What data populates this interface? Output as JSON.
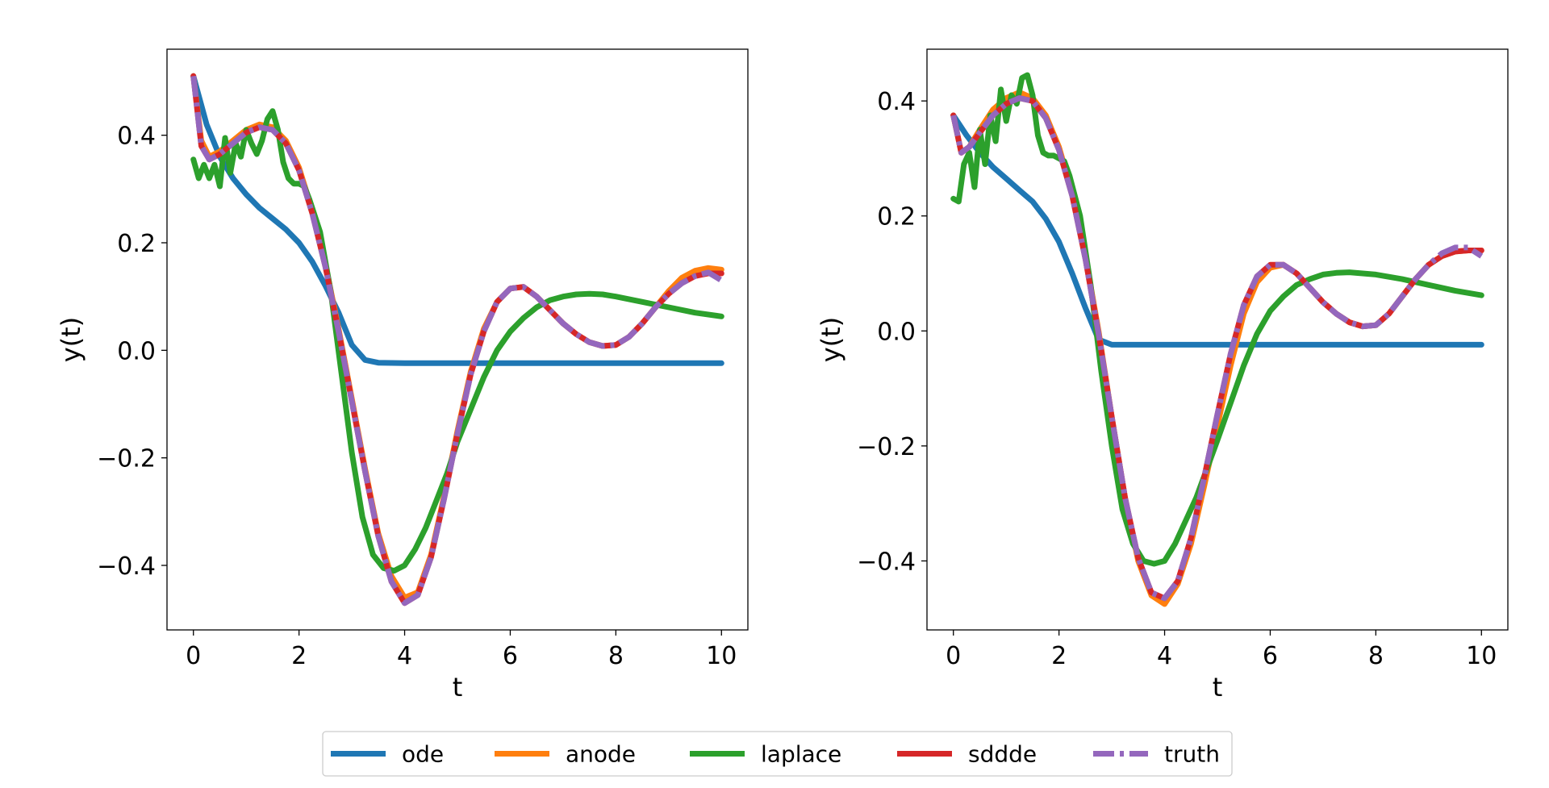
{
  "legend": {
    "placement": "bottom-center",
    "entries": [
      {
        "name": "ode",
        "color": "#1f77b4",
        "dashed": false
      },
      {
        "name": "anode",
        "color": "#ff7f0e",
        "dashed": false
      },
      {
        "name": "laplace",
        "color": "#2ca02c",
        "dashed": false
      },
      {
        "name": "sddde",
        "color": "#d62728",
        "dashed": false
      },
      {
        "name": "truth",
        "color": "#9467bd",
        "dashed": true
      }
    ]
  },
  "chart_data": [
    {
      "type": "line",
      "xlabel": "t",
      "ylabel": "y(t)",
      "xlim": [
        -0.5,
        10.5
      ],
      "ylim": [
        -0.52,
        0.56
      ],
      "xticks": [
        0,
        2,
        4,
        6,
        8,
        10
      ],
      "yticks": [
        -0.4,
        -0.2,
        0.0,
        0.2,
        0.4
      ],
      "ytick_labels": [
        "−0.4",
        "−0.2",
        "0.0",
        "0.2",
        "0.4"
      ],
      "grid": false,
      "series": [
        {
          "name": "ode",
          "x": [
            0,
            0.25,
            0.5,
            0.75,
            1,
            1.25,
            1.5,
            1.75,
            2,
            2.25,
            2.5,
            2.75,
            3,
            3.25,
            3.5,
            4,
            5,
            6,
            7,
            8,
            9,
            10
          ],
          "y": [
            0.51,
            0.42,
            0.36,
            0.32,
            0.29,
            0.265,
            0.245,
            0.225,
            0.2,
            0.165,
            0.12,
            0.07,
            0.01,
            -0.018,
            -0.023,
            -0.024,
            -0.024,
            -0.024,
            -0.024,
            -0.024,
            -0.024,
            -0.024
          ]
        },
        {
          "name": "anode",
          "x": [
            0,
            0.15,
            0.3,
            0.5,
            0.75,
            1,
            1.25,
            1.5,
            1.75,
            2,
            2.25,
            2.5,
            2.75,
            3,
            3.25,
            3.5,
            3.75,
            4,
            4.25,
            4.5,
            4.75,
            5,
            5.25,
            5.5,
            5.75,
            6,
            6.25,
            6.5,
            6.75,
            7,
            7.25,
            7.5,
            7.75,
            8,
            8.25,
            8.5,
            8.75,
            9,
            9.25,
            9.5,
            9.75,
            10
          ],
          "y": [
            0.51,
            0.39,
            0.36,
            0.37,
            0.39,
            0.41,
            0.42,
            0.415,
            0.39,
            0.34,
            0.26,
            0.16,
            0.04,
            -0.09,
            -0.22,
            -0.34,
            -0.42,
            -0.46,
            -0.45,
            -0.38,
            -0.27,
            -0.15,
            -0.04,
            0.04,
            0.09,
            0.115,
            0.118,
            0.1,
            0.075,
            0.05,
            0.03,
            0.015,
            0.008,
            0.01,
            0.025,
            0.05,
            0.08,
            0.11,
            0.135,
            0.148,
            0.153,
            0.15
          ]
        },
        {
          "name": "laplace",
          "x": [
            0,
            0.1,
            0.2,
            0.3,
            0.4,
            0.5,
            0.6,
            0.7,
            0.8,
            0.9,
            1,
            1.1,
            1.2,
            1.3,
            1.4,
            1.5,
            1.6,
            1.7,
            1.8,
            1.9,
            2,
            2.1,
            2.2,
            2.4,
            2.6,
            2.8,
            3,
            3.2,
            3.4,
            3.6,
            3.8,
            4,
            4.2,
            4.4,
            4.6,
            4.8,
            5,
            5.25,
            5.5,
            5.75,
            6,
            6.25,
            6.5,
            6.75,
            7,
            7.25,
            7.5,
            7.75,
            8,
            8.5,
            9,
            9.5,
            10
          ],
          "y": [
            0.355,
            0.32,
            0.345,
            0.32,
            0.345,
            0.305,
            0.395,
            0.33,
            0.385,
            0.36,
            0.41,
            0.385,
            0.365,
            0.39,
            0.43,
            0.445,
            0.41,
            0.35,
            0.32,
            0.31,
            0.31,
            0.305,
            0.28,
            0.22,
            0.11,
            -0.04,
            -0.19,
            -0.31,
            -0.38,
            -0.405,
            -0.41,
            -0.4,
            -0.37,
            -0.33,
            -0.28,
            -0.23,
            -0.17,
            -0.11,
            -0.05,
            0.0,
            0.035,
            0.06,
            0.08,
            0.093,
            0.1,
            0.104,
            0.105,
            0.104,
            0.1,
            0.09,
            0.08,
            0.07,
            0.063
          ]
        },
        {
          "name": "sddde",
          "x": [
            0,
            0.15,
            0.3,
            0.5,
            0.75,
            1,
            1.25,
            1.5,
            1.75,
            2,
            2.25,
            2.5,
            2.75,
            3,
            3.25,
            3.5,
            3.75,
            4,
            4.25,
            4.5,
            4.75,
            5,
            5.25,
            5.5,
            5.75,
            6,
            6.25,
            6.5,
            6.75,
            7,
            7.25,
            7.5,
            7.75,
            8,
            8.25,
            8.5,
            8.75,
            9,
            9.25,
            9.5,
            9.75,
            10
          ],
          "y": [
            0.51,
            0.38,
            0.355,
            0.365,
            0.385,
            0.405,
            0.415,
            0.41,
            0.385,
            0.335,
            0.255,
            0.155,
            0.035,
            -0.095,
            -0.225,
            -0.345,
            -0.43,
            -0.47,
            -0.455,
            -0.385,
            -0.275,
            -0.155,
            -0.045,
            0.035,
            0.09,
            0.115,
            0.118,
            0.1,
            0.075,
            0.05,
            0.03,
            0.015,
            0.008,
            0.01,
            0.025,
            0.05,
            0.08,
            0.105,
            0.125,
            0.138,
            0.143,
            0.143
          ]
        },
        {
          "name": "truth",
          "x": [
            0,
            0.15,
            0.3,
            0.5,
            0.75,
            1,
            1.25,
            1.5,
            1.75,
            2,
            2.25,
            2.5,
            2.75,
            3,
            3.25,
            3.5,
            3.75,
            4,
            4.25,
            4.5,
            4.75,
            5,
            5.25,
            5.5,
            5.75,
            6,
            6.25,
            6.5,
            6.75,
            7,
            7.25,
            7.5,
            7.75,
            8,
            8.25,
            8.5,
            8.75,
            9,
            9.25,
            9.5,
            9.75,
            10
          ],
          "y": [
            0.51,
            0.38,
            0.355,
            0.365,
            0.385,
            0.405,
            0.415,
            0.41,
            0.385,
            0.335,
            0.255,
            0.155,
            0.035,
            -0.095,
            -0.225,
            -0.345,
            -0.43,
            -0.47,
            -0.455,
            -0.385,
            -0.275,
            -0.155,
            -0.045,
            0.035,
            0.09,
            0.115,
            0.118,
            0.1,
            0.075,
            0.05,
            0.03,
            0.015,
            0.008,
            0.01,
            0.025,
            0.05,
            0.08,
            0.105,
            0.125,
            0.138,
            0.145,
            0.13
          ]
        }
      ]
    },
    {
      "type": "line",
      "xlabel": "t",
      "ylabel": "y(t)",
      "xlim": [
        -0.5,
        10.5
      ],
      "ylim": [
        -0.52,
        0.49
      ],
      "xticks": [
        0,
        2,
        4,
        6,
        8,
        10
      ],
      "yticks": [
        -0.4,
        -0.2,
        0.0,
        0.2,
        0.4
      ],
      "ytick_labels": [
        "−0.4",
        "−0.2",
        "0.0",
        "0.2",
        "0.4"
      ],
      "grid": false,
      "series": [
        {
          "name": "ode",
          "x": [
            0,
            0.25,
            0.5,
            0.75,
            1,
            1.25,
            1.5,
            1.75,
            2,
            2.25,
            2.5,
            2.75,
            3,
            3.25,
            3.5,
            4,
            5,
            6,
            7,
            8,
            9,
            10
          ],
          "y": [
            0.375,
            0.34,
            0.31,
            0.285,
            0.265,
            0.245,
            0.225,
            0.195,
            0.155,
            0.1,
            0.04,
            -0.015,
            -0.024,
            -0.024,
            -0.024,
            -0.024,
            -0.024,
            -0.024,
            -0.024,
            -0.024,
            -0.024,
            -0.024
          ]
        },
        {
          "name": "anode",
          "x": [
            0,
            0.15,
            0.3,
            0.5,
            0.75,
            1,
            1.25,
            1.5,
            1.75,
            2,
            2.25,
            2.5,
            2.75,
            3,
            3.25,
            3.5,
            3.75,
            4,
            4.25,
            4.5,
            4.75,
            5,
            5.25,
            5.5,
            5.75,
            6,
            6.25,
            6.5,
            6.75,
            7,
            7.25,
            7.5,
            7.75,
            8,
            8.25,
            8.5,
            8.75,
            9,
            9.25,
            9.5,
            9.75,
            10
          ],
          "y": [
            0.375,
            0.31,
            0.32,
            0.35,
            0.385,
            0.405,
            0.415,
            0.405,
            0.375,
            0.32,
            0.24,
            0.13,
            0.0,
            -0.15,
            -0.29,
            -0.4,
            -0.46,
            -0.475,
            -0.44,
            -0.37,
            -0.27,
            -0.165,
            -0.06,
            0.03,
            0.085,
            0.11,
            0.115,
            0.1,
            0.075,
            0.05,
            0.03,
            0.015,
            0.008,
            0.01,
            0.03,
            0.06,
            0.09,
            0.115,
            0.13,
            0.138,
            0.14,
            0.14
          ]
        },
        {
          "name": "laplace",
          "x": [
            0,
            0.1,
            0.2,
            0.3,
            0.4,
            0.5,
            0.6,
            0.7,
            0.8,
            0.9,
            1,
            1.1,
            1.2,
            1.3,
            1.4,
            1.5,
            1.6,
            1.7,
            1.8,
            1.9,
            2,
            2.1,
            2.2,
            2.4,
            2.6,
            2.8,
            3,
            3.2,
            3.4,
            3.6,
            3.8,
            4,
            4.2,
            4.4,
            4.6,
            4.8,
            5,
            5.25,
            5.5,
            5.75,
            6,
            6.25,
            6.5,
            6.75,
            7,
            7.25,
            7.5,
            7.75,
            8,
            8.5,
            9,
            9.5,
            10
          ],
          "y": [
            0.23,
            0.225,
            0.29,
            0.31,
            0.25,
            0.35,
            0.29,
            0.375,
            0.33,
            0.42,
            0.365,
            0.41,
            0.395,
            0.44,
            0.445,
            0.41,
            0.34,
            0.31,
            0.305,
            0.305,
            0.3,
            0.295,
            0.27,
            0.2,
            0.08,
            -0.07,
            -0.2,
            -0.31,
            -0.37,
            -0.4,
            -0.405,
            -0.4,
            -0.37,
            -0.33,
            -0.29,
            -0.24,
            -0.19,
            -0.125,
            -0.06,
            -0.005,
            0.035,
            0.06,
            0.08,
            0.09,
            0.098,
            0.101,
            0.102,
            0.1,
            0.098,
            0.09,
            0.08,
            0.07,
            0.062
          ]
        },
        {
          "name": "sddde",
          "x": [
            0,
            0.15,
            0.3,
            0.5,
            0.75,
            1,
            1.25,
            1.5,
            1.75,
            2,
            2.25,
            2.5,
            2.75,
            3,
            3.25,
            3.5,
            3.75,
            4,
            4.25,
            4.5,
            4.75,
            5,
            5.25,
            5.5,
            5.75,
            6,
            6.25,
            6.5,
            6.75,
            7,
            7.25,
            7.5,
            7.75,
            8,
            8.25,
            8.5,
            8.75,
            9,
            9.25,
            9.5,
            9.75,
            10
          ],
          "y": [
            0.375,
            0.31,
            0.32,
            0.345,
            0.375,
            0.395,
            0.405,
            0.4,
            0.37,
            0.315,
            0.235,
            0.125,
            -0.005,
            -0.15,
            -0.29,
            -0.395,
            -0.455,
            -0.465,
            -0.435,
            -0.36,
            -0.255,
            -0.145,
            -0.04,
            0.045,
            0.095,
            0.115,
            0.115,
            0.1,
            0.075,
            0.05,
            0.03,
            0.015,
            0.008,
            0.01,
            0.03,
            0.06,
            0.09,
            0.115,
            0.13,
            0.138,
            0.14,
            0.14
          ]
        },
        {
          "name": "truth",
          "x": [
            0,
            0.15,
            0.3,
            0.5,
            0.75,
            1,
            1.25,
            1.5,
            1.75,
            2,
            2.25,
            2.5,
            2.75,
            3,
            3.25,
            3.5,
            3.75,
            4,
            4.25,
            4.5,
            4.75,
            5,
            5.25,
            5.5,
            5.75,
            6,
            6.25,
            6.5,
            6.75,
            7,
            7.25,
            7.5,
            7.75,
            8,
            8.25,
            8.5,
            8.75,
            9,
            9.25,
            9.5,
            9.75,
            10
          ],
          "y": [
            0.375,
            0.31,
            0.32,
            0.345,
            0.375,
            0.395,
            0.405,
            0.4,
            0.37,
            0.315,
            0.235,
            0.125,
            -0.005,
            -0.15,
            -0.29,
            -0.395,
            -0.455,
            -0.465,
            -0.435,
            -0.36,
            -0.255,
            -0.145,
            -0.04,
            0.045,
            0.095,
            0.115,
            0.115,
            0.1,
            0.075,
            0.05,
            0.03,
            0.015,
            0.008,
            0.01,
            0.03,
            0.06,
            0.09,
            0.115,
            0.135,
            0.145,
            0.145,
            0.13
          ]
        }
      ]
    }
  ]
}
